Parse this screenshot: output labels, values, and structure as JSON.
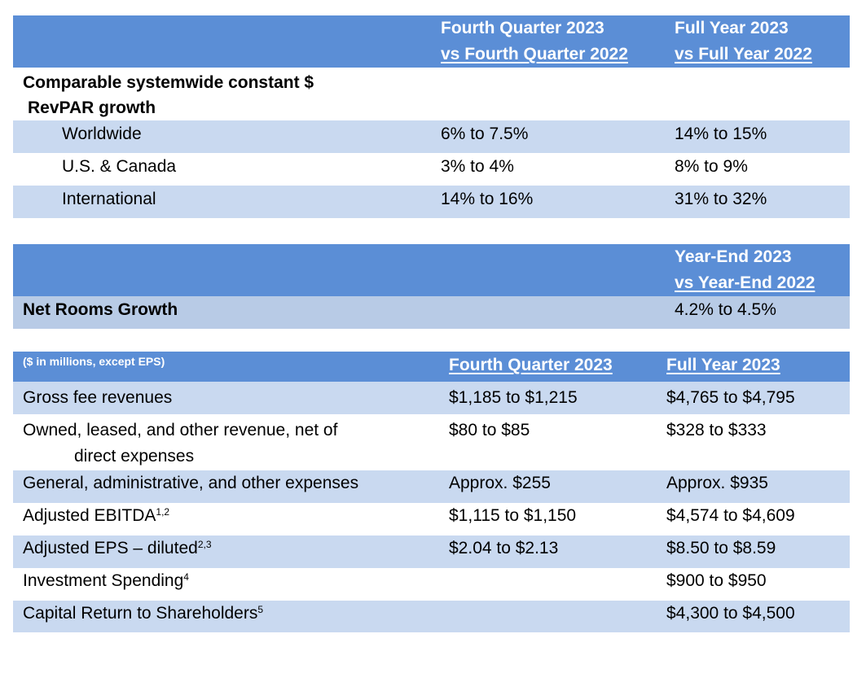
{
  "section1": {
    "header": {
      "col2_line1": "Fourth Quarter 2023",
      "col2_line2": "vs Fourth Quarter 2022",
      "col3_line1": "Full Year 2023",
      "col3_line2": "vs Full Year 2022"
    },
    "title_line1": "Comparable systemwide constant $",
    "title_line2": "RevPAR growth",
    "rows": [
      {
        "label": "Worldwide",
        "q4": "6% to 7.5%",
        "fy": "14% to 15%"
      },
      {
        "label": "U.S. & Canada",
        "q4": "3% to 4%",
        "fy": "8% to 9%"
      },
      {
        "label": "International",
        "q4": "14% to 16%",
        "fy": "31% to 32%"
      }
    ]
  },
  "section2": {
    "header_line1": "Year-End 2023",
    "header_line2": "vs Year-End 2022",
    "label": "Net Rooms Growth",
    "value": "4.2% to 4.5%"
  },
  "section3": {
    "header": {
      "units": "($ in millions, except EPS)",
      "q4": "Fourth Quarter 2023",
      "fy": "Full Year 2023"
    },
    "rows": [
      {
        "label": "Gross fee revenues",
        "sup": "",
        "q4": "$1,185 to $1,215",
        "fy": "$4,765 to $4,795"
      },
      {
        "label": "Owned, leased, and other revenue, net of",
        "label2": "direct expenses",
        "sup": "",
        "q4": "$80 to $85",
        "fy": "$328 to $333"
      },
      {
        "label": "General, administrative, and other expenses",
        "sup": "",
        "q4": "Approx. $255",
        "fy": "Approx. $935"
      },
      {
        "label": "Adjusted EBITDA",
        "sup": "1,2",
        "q4": "$1,115 to $1,150",
        "fy": "$4,574 to $4,609"
      },
      {
        "label": "Adjusted EPS – diluted",
        "sup": "2,3",
        "q4": "$2.04 to $2.13",
        "fy": "$8.50 to $8.59"
      },
      {
        "label": "Investment Spending",
        "sup": "4",
        "q4": "",
        "fy": "$900 to $950"
      },
      {
        "label": "Capital Return to Shareholders",
        "sup": "5",
        "q4": "",
        "fy": "$4,300 to $4,500"
      }
    ]
  }
}
